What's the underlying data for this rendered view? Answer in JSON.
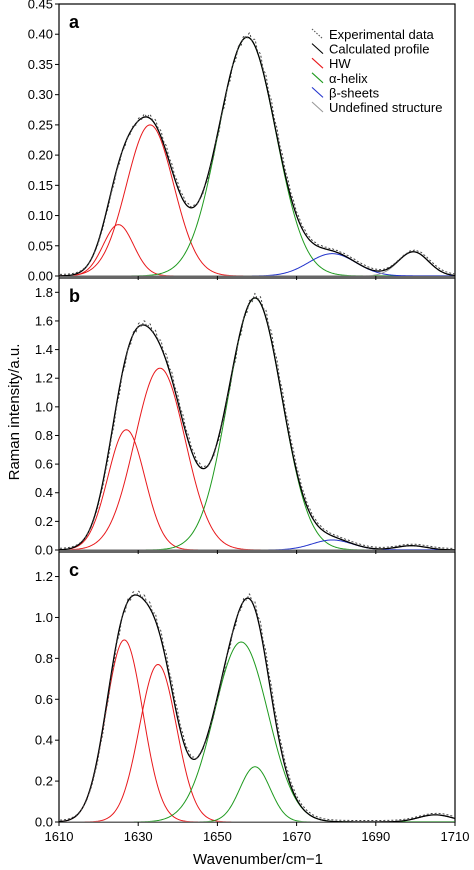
{
  "figure": {
    "xlabel": "Wavenumber/cm−1",
    "ylabel": "Raman intensity/a.u.",
    "legend": {
      "placement": "top-right of panel a",
      "entries": [
        {
          "label": "Experimental data",
          "color": "#555555",
          "style": "dotted"
        },
        {
          "label": "Calculated profile",
          "color": "#000000",
          "style": "solid"
        },
        {
          "label": "HW",
          "color": "#e8191c",
          "style": "solid"
        },
        {
          "label": "α-helix",
          "color": "#1f9a1f",
          "style": "solid"
        },
        {
          "label": "β-sheets",
          "color": "#2233cc",
          "style": "solid"
        },
        {
          "label": "Undefined structure",
          "color": "#999999",
          "style": "solid"
        }
      ]
    }
  },
  "chart_data": [
    {
      "type": "line",
      "panel": "a",
      "xlim": [
        1610,
        1710
      ],
      "x_ticks": [
        "1610",
        "1630",
        "1650",
        "1670",
        "1690",
        "1710"
      ],
      "ylim": [
        0,
        0.45
      ],
      "y_ticks": [
        "0.00",
        "0.05",
        "0.10",
        "0.15",
        "0.20",
        "0.25",
        "0.30",
        "0.35",
        "0.40",
        "0.45"
      ],
      "components": [
        {
          "name": "HW",
          "color": "#e8191c",
          "center": 1625,
          "height": 0.085,
          "fwhm": 9
        },
        {
          "name": "HW",
          "color": "#e8191c",
          "center": 1633,
          "height": 0.25,
          "fwhm": 14
        },
        {
          "name": "α-helix",
          "color": "#1f9a1f",
          "center": 1657.5,
          "height": 0.395,
          "fwhm": 17
        },
        {
          "name": "β-sheets",
          "color": "#2233cc",
          "center": 1679,
          "height": 0.037,
          "fwhm": 14
        },
        {
          "name": "Undefined structure",
          "color": "#999999",
          "center": 1699.5,
          "height": 0.04,
          "fwhm": 9
        }
      ]
    },
    {
      "type": "line",
      "panel": "b",
      "xlim": [
        1610,
        1710
      ],
      "x_ticks": [
        "1610",
        "1630",
        "1650",
        "1670",
        "1690",
        "1710"
      ],
      "ylim": [
        0,
        1.9
      ],
      "y_ticks": [
        "0.0",
        "0.2",
        "0.4",
        "0.6",
        "0.8",
        "1.0",
        "1.2",
        "1.4",
        "1.6",
        "1.8"
      ],
      "components": [
        {
          "name": "HW",
          "color": "#e8191c",
          "center": 1627,
          "height": 0.84,
          "fwhm": 11
        },
        {
          "name": "HW",
          "color": "#e8191c",
          "center": 1635.5,
          "height": 1.27,
          "fwhm": 15
        },
        {
          "name": "α-helix",
          "color": "#1f9a1f",
          "center": 1659.5,
          "height": 1.76,
          "fwhm": 16
        },
        {
          "name": "β-sheets",
          "color": "#2233cc",
          "center": 1679,
          "height": 0.07,
          "fwhm": 12
        },
        {
          "name": "Undefined structure",
          "color": "#999999",
          "center": 1699,
          "height": 0.03,
          "fwhm": 9
        }
      ]
    },
    {
      "type": "line",
      "panel": "c",
      "xlim": [
        1610,
        1710
      ],
      "x_ticks": [
        "1610",
        "1630",
        "1650",
        "1670",
        "1690",
        "1710"
      ],
      "ylim": [
        0,
        1.32
      ],
      "y_ticks": [
        "0.0",
        "0.2",
        "0.4",
        "0.6",
        "0.8",
        "1.0",
        "1.2"
      ],
      "components": [
        {
          "name": "HW",
          "color": "#e8191c",
          "center": 1626.5,
          "height": 0.89,
          "fwhm": 11
        },
        {
          "name": "HW",
          "color": "#e8191c",
          "center": 1635,
          "height": 0.77,
          "fwhm": 11
        },
        {
          "name": "α-helix",
          "color": "#1f9a1f",
          "center": 1656,
          "height": 0.88,
          "fwhm": 16
        },
        {
          "name": "α-helix",
          "color": "#1f9a1f",
          "center": 1659.5,
          "height": 0.27,
          "fwhm": 9
        },
        {
          "name": "Undefined structure",
          "color": "#999999",
          "center": 1705,
          "height": 0.035,
          "fwhm": 10
        }
      ]
    }
  ]
}
